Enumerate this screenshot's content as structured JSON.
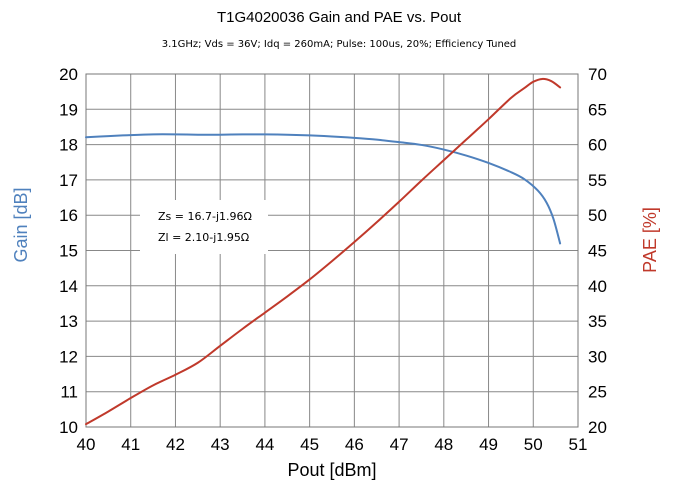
{
  "chart_data": {
    "type": "line",
    "title": "T1G4020036 Gain and PAE vs. Pout",
    "subtitle": "3.1GHz; Vds = 36V; Idq = 260mA; Pulse: 100us, 20%; Efficiency Tuned",
    "xlabel": "Pout [dBm]",
    "ylabel": "Gain [dB]",
    "y2label": "PAE [%]",
    "xlim": [
      40,
      51
    ],
    "ylim": [
      10,
      20
    ],
    "y2lim": [
      20,
      70
    ],
    "xticks": [
      "40",
      "41",
      "42",
      "43",
      "44",
      "45",
      "46",
      "47",
      "48",
      "49",
      "50",
      "51"
    ],
    "yticks": [
      "10",
      "11",
      "12",
      "13",
      "14",
      "15",
      "16",
      "17",
      "18",
      "19",
      "20"
    ],
    "y2ticks": [
      "20",
      "25",
      "30",
      "35",
      "40",
      "45",
      "50",
      "55",
      "60",
      "65",
      "70"
    ],
    "grid": true,
    "annotations": [
      "Zs = 16.7-j1.96Ω",
      "Zl = 2.10-j1.95Ω"
    ],
    "colors": {
      "gain": "#4f81bd",
      "pae": "#c0392b",
      "grid": "#888888"
    },
    "series": [
      {
        "axis": "left",
        "color": "#4f81bd",
        "x": [
          40,
          40.5,
          41,
          41.5,
          42,
          42.5,
          43,
          43.5,
          44,
          44.5,
          45,
          45.5,
          46,
          46.5,
          47,
          47.5,
          48,
          48.5,
          49,
          49.5,
          49.8,
          50.1,
          50.3,
          50.45,
          50.6
        ],
        "y": [
          18.21,
          18.24,
          18.27,
          18.29,
          18.29,
          18.28,
          18.28,
          18.29,
          18.29,
          18.28,
          18.26,
          18.23,
          18.19,
          18.14,
          18.07,
          17.99,
          17.86,
          17.69,
          17.48,
          17.22,
          17.02,
          16.7,
          16.35,
          15.9,
          15.2
        ]
      },
      {
        "axis": "right",
        "color": "#c0392b",
        "x": [
          40,
          40.5,
          41,
          41.5,
          42,
          42.5,
          43,
          43.5,
          44,
          44.5,
          45,
          45.5,
          46,
          46.5,
          47,
          47.5,
          48,
          48.5,
          49,
          49.5,
          49.8,
          50,
          50.2,
          50.4,
          50.6
        ],
        "y": [
          20.4,
          22.2,
          24.1,
          25.9,
          27.4,
          29.1,
          31.5,
          33.9,
          36.2,
          38.5,
          40.9,
          43.5,
          46.2,
          49.0,
          51.9,
          54.9,
          57.8,
          60.7,
          63.6,
          66.6,
          68.0,
          68.9,
          69.3,
          69.0,
          68.1
        ]
      }
    ]
  }
}
